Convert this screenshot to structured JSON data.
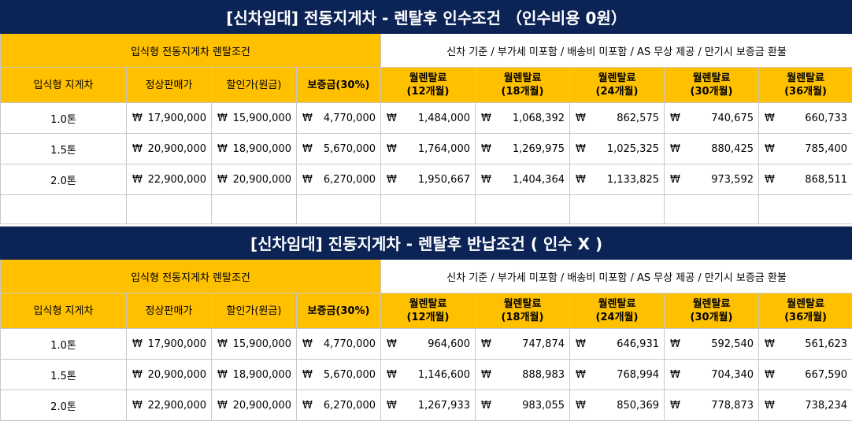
{
  "currency_symbol": "₩",
  "colors": {
    "title_bg": "#0c2356",
    "header_bg": "#ffc000"
  },
  "section1": {
    "title": "[신차임대] 전동지게차 - 렌탈후 인수조건 （인수비용 0원）",
    "subheader_left": "입식형 전동지게차 렌탈조건",
    "subheader_right": "신차 기준 / 부가세 미포함 / 배송비 미포함 / AS 무상 제공 / 만기시 보증금 환불",
    "columns": [
      "입식형 지게차",
      "정상판매가",
      "할인가(원금)",
      "보증금(30%)",
      "월렌탈료\n(12개월)",
      "월렌탈료\n(18개월)",
      "월렌탈료\n(24개월)",
      "월렌탈료\n(30개월)",
      "월렌탈료\n(36개월)"
    ],
    "rows": [
      {
        "name": "1.0톤",
        "list_price": "17,900,000",
        "discount_price": "15,900,000",
        "deposit": "4,770,000",
        "m12": "1,484,000",
        "m18": "1,068,392",
        "m24": "862,575",
        "m30": "740,675",
        "m36": "660,733"
      },
      {
        "name": "1.5톤",
        "list_price": "20,900,000",
        "discount_price": "18,900,000",
        "deposit": "5,670,000",
        "m12": "1,764,000",
        "m18": "1,269,975",
        "m24": "1,025,325",
        "m30": "880,425",
        "m36": "785,400"
      },
      {
        "name": "2.0톤",
        "list_price": "22,900,000",
        "discount_price": "20,900,000",
        "deposit": "6,270,000",
        "m12": "1,950,667",
        "m18": "1,404,364",
        "m24": "1,133,825",
        "m30": "973,592",
        "m36": "868,511"
      }
    ]
  },
  "section2": {
    "title": "[신차임대] 진동지게차 - 렌탈후 반납조건 ( 인수 X )",
    "subheader_left": "입식형 전동지게차 렌탈조건",
    "subheader_right": "신차 기준 / 부가세 미포함 / 배송비 미포함 / AS 무상 제공 / 만기시 보증금 환불",
    "columns": [
      "입식형 지게차",
      "정상판매가",
      "할인가(원금)",
      "보증금(30%)",
      "월렌탈료\n(12개월)",
      "월렌탈료\n(18개월)",
      "월렌탈료\n(24개월)",
      "월렌탈료\n(30개월)",
      "월렌탈료\n(36개월)"
    ],
    "rows": [
      {
        "name": "1.0톤",
        "list_price": "17,900,000",
        "discount_price": "15,900,000",
        "deposit": "4,770,000",
        "m12": "964,600",
        "m18": "747,874",
        "m24": "646,931",
        "m30": "592,540",
        "m36": "561,623"
      },
      {
        "name": "1.5톤",
        "list_price": "20,900,000",
        "discount_price": "18,900,000",
        "deposit": "5,670,000",
        "m12": "1,146,600",
        "m18": "888,983",
        "m24": "768,994",
        "m30": "704,340",
        "m36": "667,590"
      },
      {
        "name": "2.0톤",
        "list_price": "22,900,000",
        "discount_price": "20,900,000",
        "deposit": "6,270,000",
        "m12": "1,267,933",
        "m18": "983,055",
        "m24": "850,369",
        "m30": "778,873",
        "m36": "738,234"
      }
    ]
  }
}
